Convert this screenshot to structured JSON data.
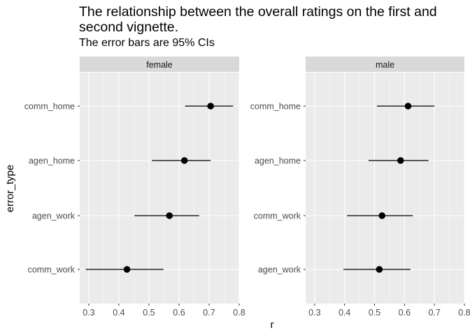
{
  "chart_data": {
    "type": "scatter",
    "title": "The relationship between the overall ratings on the first and second vignette.",
    "subtitle": "The error bars are 95% CIs",
    "xlabel": "r",
    "ylabel": "error_type",
    "xlim": [
      0.27,
      0.8
    ],
    "xticks": [
      0.3,
      0.4,
      0.5,
      0.6,
      0.7,
      0.8
    ],
    "xtick_labels": [
      "0.3",
      "0.4",
      "0.5",
      "0.6",
      "0.7",
      "0.8"
    ],
    "grid": true,
    "error_bars": "95% CI",
    "panels": [
      {
        "facet": "female",
        "categories": [
          "comm_home",
          "agen_home",
          "agen_work",
          "comm_work"
        ],
        "r": [
          0.705,
          0.618,
          0.568,
          0.427
        ],
        "ci_low": [
          0.62,
          0.51,
          0.452,
          0.29
        ],
        "ci_high": [
          0.78,
          0.705,
          0.667,
          0.548
        ]
      },
      {
        "facet": "male",
        "categories": [
          "comm_home",
          "agen_home",
          "comm_work",
          "agen_work"
        ],
        "r": [
          0.612,
          0.587,
          0.525,
          0.516
        ],
        "ci_low": [
          0.508,
          0.48,
          0.408,
          0.396
        ],
        "ci_high": [
          0.7,
          0.68,
          0.628,
          0.62
        ]
      }
    ]
  }
}
